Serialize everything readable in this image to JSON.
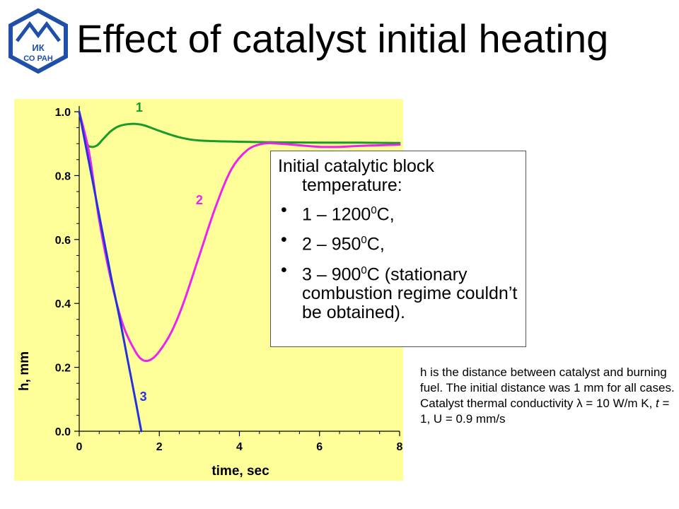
{
  "title": "Effect of catalyst initial heating",
  "logo": {
    "line1": "ИК",
    "line2": "СО РАН",
    "colors": {
      "blue": "#1f4fa8",
      "fill": "#ffffff"
    }
  },
  "legend": {
    "heading_line1": "Initial catalytic block",
    "heading_line2": "temperature:",
    "items": [
      {
        "prefix": "1 – 1200",
        "sup": "0",
        "suffix": "C,"
      },
      {
        "prefix": "2 – 950",
        "sup": "0",
        "suffix": "C,"
      },
      {
        "prefix": "3 – 900",
        "sup": "0",
        "suffix": "C (stationary combustion regime couldn’t be obtained)."
      }
    ]
  },
  "note": {
    "line1": "h is the distance between catalyst and burning fuel. The initial distance was 1 mm for all cases.",
    "line2_before": "Catalyst thermal conductivity λ = 10 W/m K, ",
    "line2_var": "t",
    "line2_after": " = 1, U = 0.9 mm/s"
  },
  "chart_data": {
    "type": "line",
    "xlabel": "time, sec",
    "ylabel": "h, mm",
    "xlim": [
      0,
      8
    ],
    "ylim": [
      0,
      1
    ],
    "x_ticks": [
      "0",
      "2",
      "4",
      "6",
      "8"
    ],
    "y_ticks": [
      "0.0",
      "0.2",
      "0.4",
      "0.6",
      "0.8",
      "1.0"
    ],
    "grid": false,
    "background": "#ffff99",
    "series": [
      {
        "name": "1",
        "color": "#1a9a2a",
        "x": [
          0,
          0.1,
          0.2,
          0.3,
          0.45,
          0.6,
          0.8,
          1.0,
          1.3,
          1.6,
          2.0,
          2.5,
          3.0,
          4.0,
          5.0,
          6.0,
          7.0,
          8.0
        ],
        "y": [
          1.0,
          0.95,
          0.9,
          0.89,
          0.895,
          0.915,
          0.94,
          0.955,
          0.962,
          0.958,
          0.94,
          0.92,
          0.91,
          0.906,
          0.904,
          0.903,
          0.903,
          0.902
        ]
      },
      {
        "name": "2",
        "color": "#ee22ee",
        "x": [
          0,
          0.25,
          0.5,
          0.8,
          1.1,
          1.4,
          1.6,
          1.8,
          2.0,
          2.3,
          2.6,
          3.0,
          3.4,
          3.8,
          4.2,
          4.6,
          5.0,
          5.5,
          6.0,
          6.5,
          7.0,
          7.5,
          8.0
        ],
        "y": [
          1.0,
          0.87,
          0.66,
          0.47,
          0.33,
          0.25,
          0.222,
          0.225,
          0.25,
          0.31,
          0.4,
          0.55,
          0.7,
          0.82,
          0.88,
          0.9,
          0.9,
          0.895,
          0.89,
          0.89,
          0.893,
          0.895,
          0.897
        ]
      },
      {
        "name": "3",
        "color": "#2233dd",
        "x": [
          0,
          0.2,
          0.4,
          0.6,
          0.8,
          1.0,
          1.2,
          1.4,
          1.55
        ],
        "y": [
          1.0,
          0.87,
          0.74,
          0.61,
          0.48,
          0.36,
          0.23,
          0.1,
          0.0
        ]
      }
    ],
    "curve_labels": [
      {
        "text": "1",
        "x": 1.5,
        "y": 1.0,
        "color": "#1a9a2a"
      },
      {
        "text": "2",
        "x": 3.0,
        "y": 0.71,
        "color": "#ee22ee"
      },
      {
        "text": "3",
        "x": 1.6,
        "y": 0.095,
        "color": "#2233dd"
      }
    ]
  }
}
